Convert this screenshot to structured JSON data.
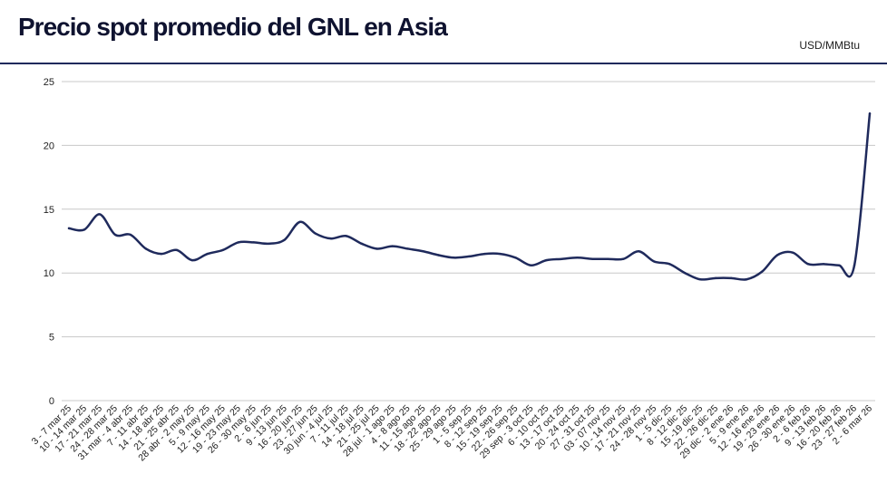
{
  "header": {
    "title": "Precio spot promedio del GNL en Asia",
    "unit": "USD/MMBtu"
  },
  "colors": {
    "line": "#1f2a5c",
    "grid": "#c8c8c8",
    "title": "#0f1330"
  },
  "chart_data": {
    "type": "line",
    "title": "Precio spot promedio del GNL en Asia",
    "ylabel": "USD/MMBtu",
    "xlabel": "",
    "ylim": [
      0,
      25
    ],
    "yticks": [
      0,
      5,
      10,
      15,
      20,
      25
    ],
    "grid": true,
    "legend": "none",
    "categories": [
      "3 - 7 mar 25",
      "10 - 14 mar 25",
      "17 - 21 mar 25",
      "24 - 28 mar 25",
      "31 mar - 4 abr 25",
      "7 - 11 abr 25",
      "14 - 18 abr 25",
      "21 - 25 abr 25",
      "28 abr - 2 may 25",
      "5 - 9 may 25",
      "12 - 16 may 25",
      "19 - 23 may 25",
      "26 - 30 may 25",
      "2 - 6 jun 25",
      "9 - 13 jun 25",
      "16 - 20 jun 25",
      "23 - 27 jun 25",
      "30 jun - 4 jul 25",
      "7 - 11 jul 25",
      "14 - 18 jul 25",
      "21 - 25 jul 25",
      "28 jul - 1 ago 25",
      "4 - 8 ago 25",
      "11 - 15 ago 25",
      "18 - 22 ago 25",
      "25 - 29 ago 25",
      "1 - 5 sep 25",
      "8 - 12 sep 25",
      "15 - 19 sep 25",
      "22 - 26 sep 25",
      "29 sep - 3 oct 25",
      "6 - 10 oct 25",
      "13 - 17 oct 25",
      "20 - 24 oct 25",
      "27 - 31 oct 25",
      "03 - 07 nov 25",
      "10 - 14 nov 25",
      "17 - 21 nov 25",
      "24 - 28 nov 25",
      "1 - 5 dic 25",
      "8 - 12 dic 25",
      "15 -19 dic 25",
      "22 - 26 dic 25",
      "29 dic - 2 ene 26",
      "5 - 9 ene 26",
      "12 - 16 ene 26",
      "19 - 23 ene 26",
      "26 - 30 ene 26",
      "2 - 6 feb 26",
      "9 - 13 feb 26",
      "16 - 20 feb 26",
      "23 - 27 feb 26",
      "2 - 6 mar 26"
    ],
    "series": [
      {
        "values": [
          13.5,
          13.4,
          14.6,
          13.0,
          13.0,
          11.9,
          11.5,
          11.8,
          11.0,
          11.5,
          11.8,
          12.4,
          12.4,
          12.3,
          12.6,
          14.0,
          13.1,
          12.7,
          12.9,
          12.3,
          11.9,
          12.1,
          11.9,
          11.7,
          11.4,
          11.2,
          11.3,
          11.5,
          11.5,
          11.2,
          10.6,
          11.0,
          11.1,
          11.2,
          11.1,
          11.1,
          11.1,
          11.7,
          10.9,
          10.7,
          10.0,
          9.5,
          9.6,
          9.6,
          9.5,
          10.1,
          11.4,
          11.6,
          10.7,
          10.7,
          10.6,
          10.6,
          22.5
        ]
      }
    ]
  }
}
